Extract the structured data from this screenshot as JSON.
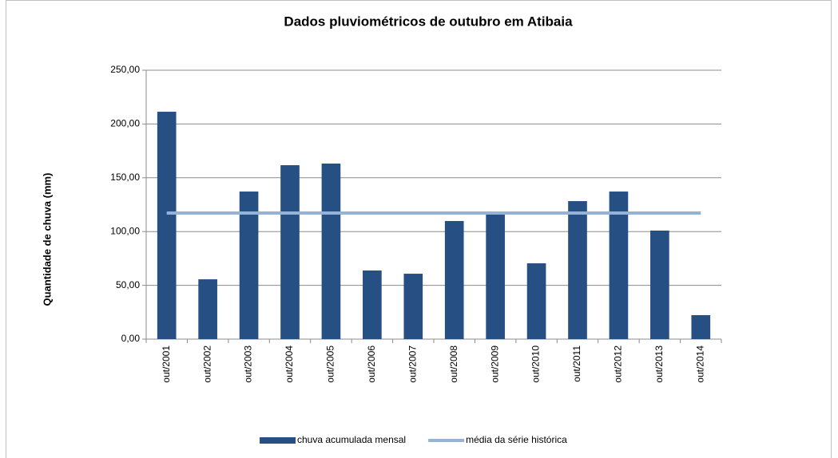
{
  "chart_data": {
    "type": "bar",
    "title": "Dados pluviométricos de outubro em Atibaia",
    "y_label": "Quantidade de chuva (mm)",
    "categories": [
      "out/2001",
      "out/2002",
      "out/2003",
      "out/2004",
      "out/2005",
      "out/2006",
      "out/2007",
      "out/2008",
      "out/2009",
      "out/2010",
      "out/2011",
      "out/2012",
      "out/2013",
      "out/2014"
    ],
    "series": [
      {
        "name": "chuva acumulada mensal",
        "type": "bar",
        "color": "#264f84",
        "values": [
          211.4,
          55.6,
          137.2,
          161.7,
          163.2,
          63.8,
          60.8,
          109.8,
          116.5,
          70.5,
          128.3,
          137.2,
          100.9,
          22.3
        ]
      },
      {
        "name": "média da série histórica",
        "type": "line",
        "color": "#95b3d7",
        "values": [
          117.2,
          117.2,
          117.2,
          117.2,
          117.2,
          117.2,
          117.2,
          117.2,
          117.2,
          117.2,
          117.2,
          117.2,
          117.2,
          117.2
        ]
      }
    ],
    "ylim": [
      0,
      250
    ],
    "yticks": [
      {
        "value": 0,
        "label": "0,00"
      },
      {
        "value": 50,
        "label": "50,00"
      },
      {
        "value": 100,
        "label": "100,00"
      },
      {
        "value": 150,
        "label": "150,00"
      },
      {
        "value": 200,
        "label": "200,00"
      },
      {
        "value": 250,
        "label": "250,00"
      }
    ],
    "grid": true,
    "legend": "bottom"
  }
}
